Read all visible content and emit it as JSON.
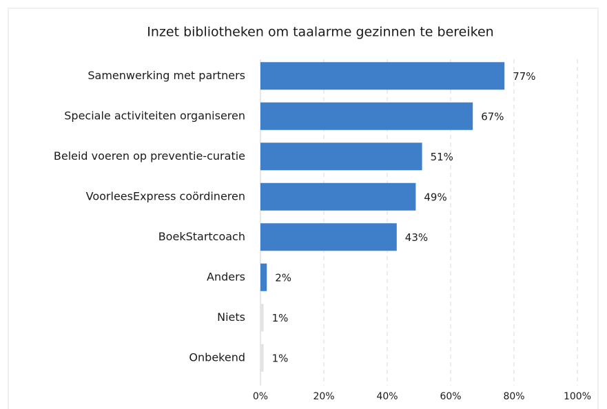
{
  "chart_data": {
    "type": "barh",
    "title": "Inzet bibliotheken om taalarme gezinnen te bereiken",
    "categories": [
      "Samenwerking met partners",
      "Speciale activiteiten organiseren",
      "Beleid voeren op preventie-curatie",
      "VoorleesExpress coördineren",
      "BoekStartcoach",
      "Anders",
      "Niets",
      "Onbekend"
    ],
    "values": [
      77,
      67,
      51,
      49,
      43,
      2,
      1,
      1
    ],
    "value_labels": [
      "77%",
      "67%",
      "51%",
      "49%",
      "43%",
      "2%",
      "1%",
      "1%"
    ],
    "colors": [
      "#3f7fca",
      "#3f7fca",
      "#3f7fca",
      "#3f7fca",
      "#3f7fca",
      "#3f7fca",
      "#e3e3e3",
      "#e3e3e3"
    ],
    "xlim": [
      0,
      100
    ],
    "xticks": [
      {
        "value": 0,
        "label": "0%"
      },
      {
        "value": 20,
        "label": "20%"
      },
      {
        "value": 40,
        "label": "40%"
      },
      {
        "value": 60,
        "label": "60%"
      },
      {
        "value": 80,
        "label": "80%"
      },
      {
        "value": 100,
        "label": "100%"
      }
    ],
    "grid": true
  }
}
